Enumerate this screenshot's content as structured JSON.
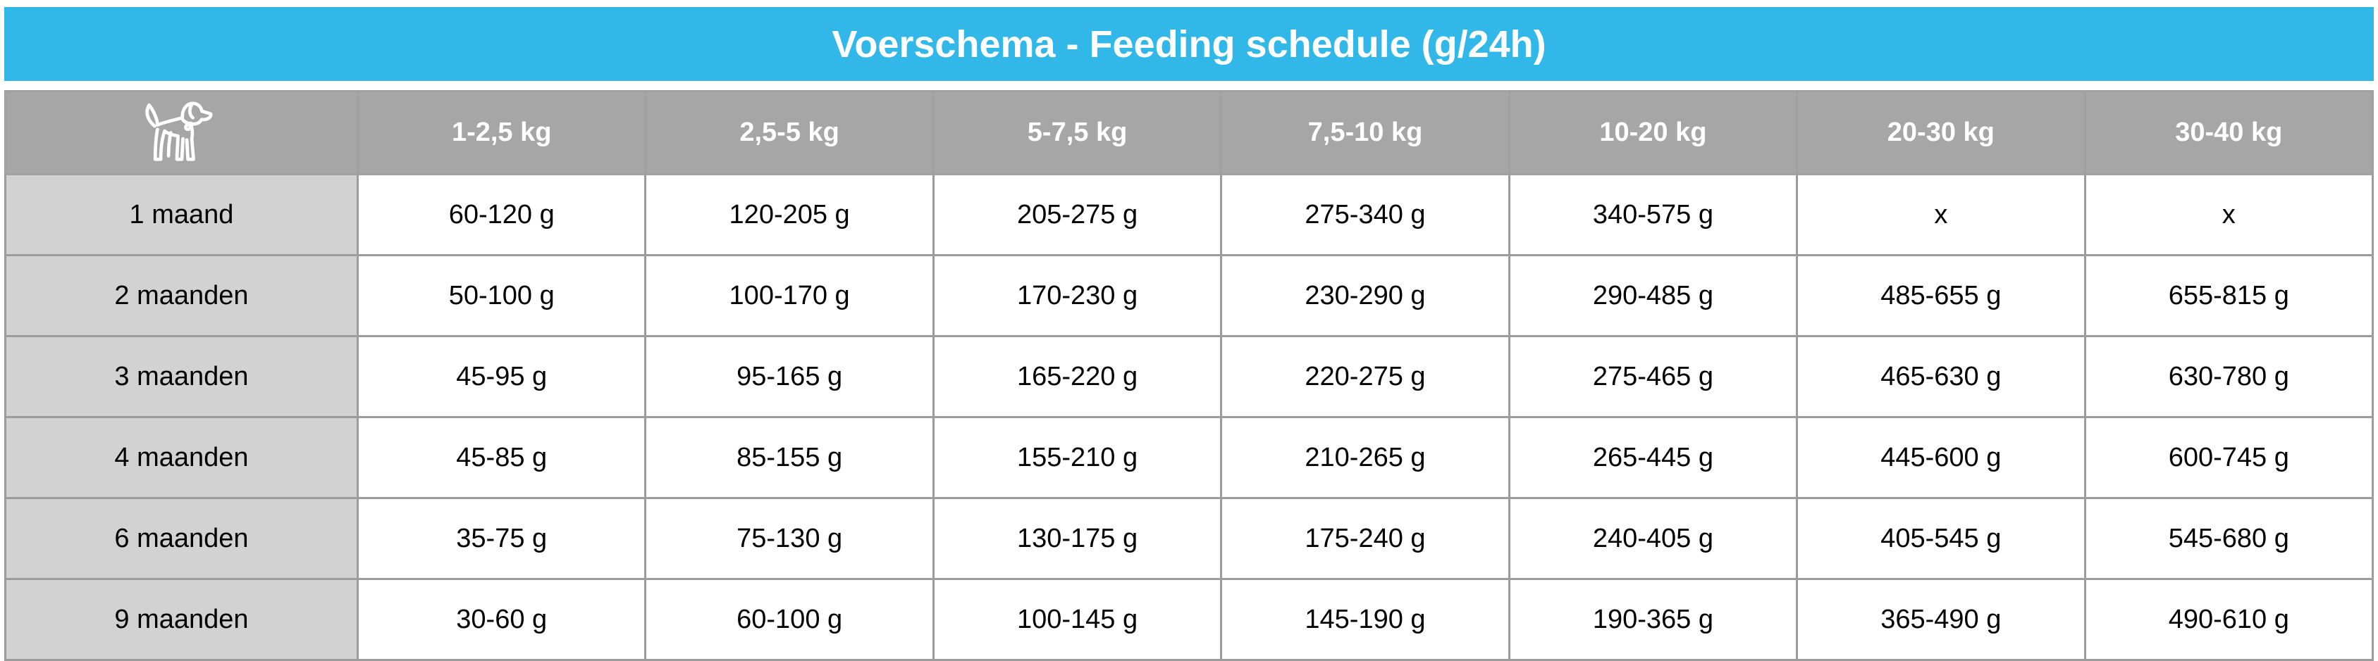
{
  "title": "Voerschema - Feeding schedule (g/24h)",
  "colors": {
    "accent": "#31b8e9",
    "header_bg": "#a6a6a6",
    "label_bg": "#d2d2d2",
    "grid": "#9c9c9c",
    "header_text": "#ffffff",
    "cell_text": "#000000"
  },
  "table": {
    "corner_icon": "dog-icon",
    "columns": [
      "1-2,5 kg",
      "2,5-5 kg",
      "5-7,5 kg",
      "7,5-10 kg",
      "10-20 kg",
      "20-30 kg",
      "30-40 kg"
    ],
    "rows": [
      {
        "label": "1 maand",
        "values": [
          "60-120 g",
          "120-205 g",
          "205-275 g",
          "275-340 g",
          "340-575 g",
          "x",
          "x"
        ]
      },
      {
        "label": "2 maanden",
        "values": [
          "50-100 g",
          "100-170 g",
          "170-230 g",
          "230-290 g",
          "290-485 g",
          "485-655 g",
          "655-815 g"
        ]
      },
      {
        "label": "3 maanden",
        "values": [
          "45-95 g",
          "95-165 g",
          "165-220 g",
          "220-275 g",
          "275-465 g",
          "465-630 g",
          "630-780 g"
        ]
      },
      {
        "label": "4 maanden",
        "values": [
          "45-85 g",
          "85-155 g",
          "155-210 g",
          "210-265 g",
          "265-445 g",
          "445-600 g",
          "600-745 g"
        ]
      },
      {
        "label": "6 maanden",
        "values": [
          "35-75 g",
          "75-130 g",
          "130-175 g",
          "175-240 g",
          "240-405 g",
          "405-545 g",
          "545-680 g"
        ]
      },
      {
        "label": "9 maanden",
        "values": [
          "30-60 g",
          "60-100 g",
          "100-145 g",
          "145-190 g",
          "190-365 g",
          "365-490 g",
          "490-610 g"
        ]
      }
    ]
  }
}
